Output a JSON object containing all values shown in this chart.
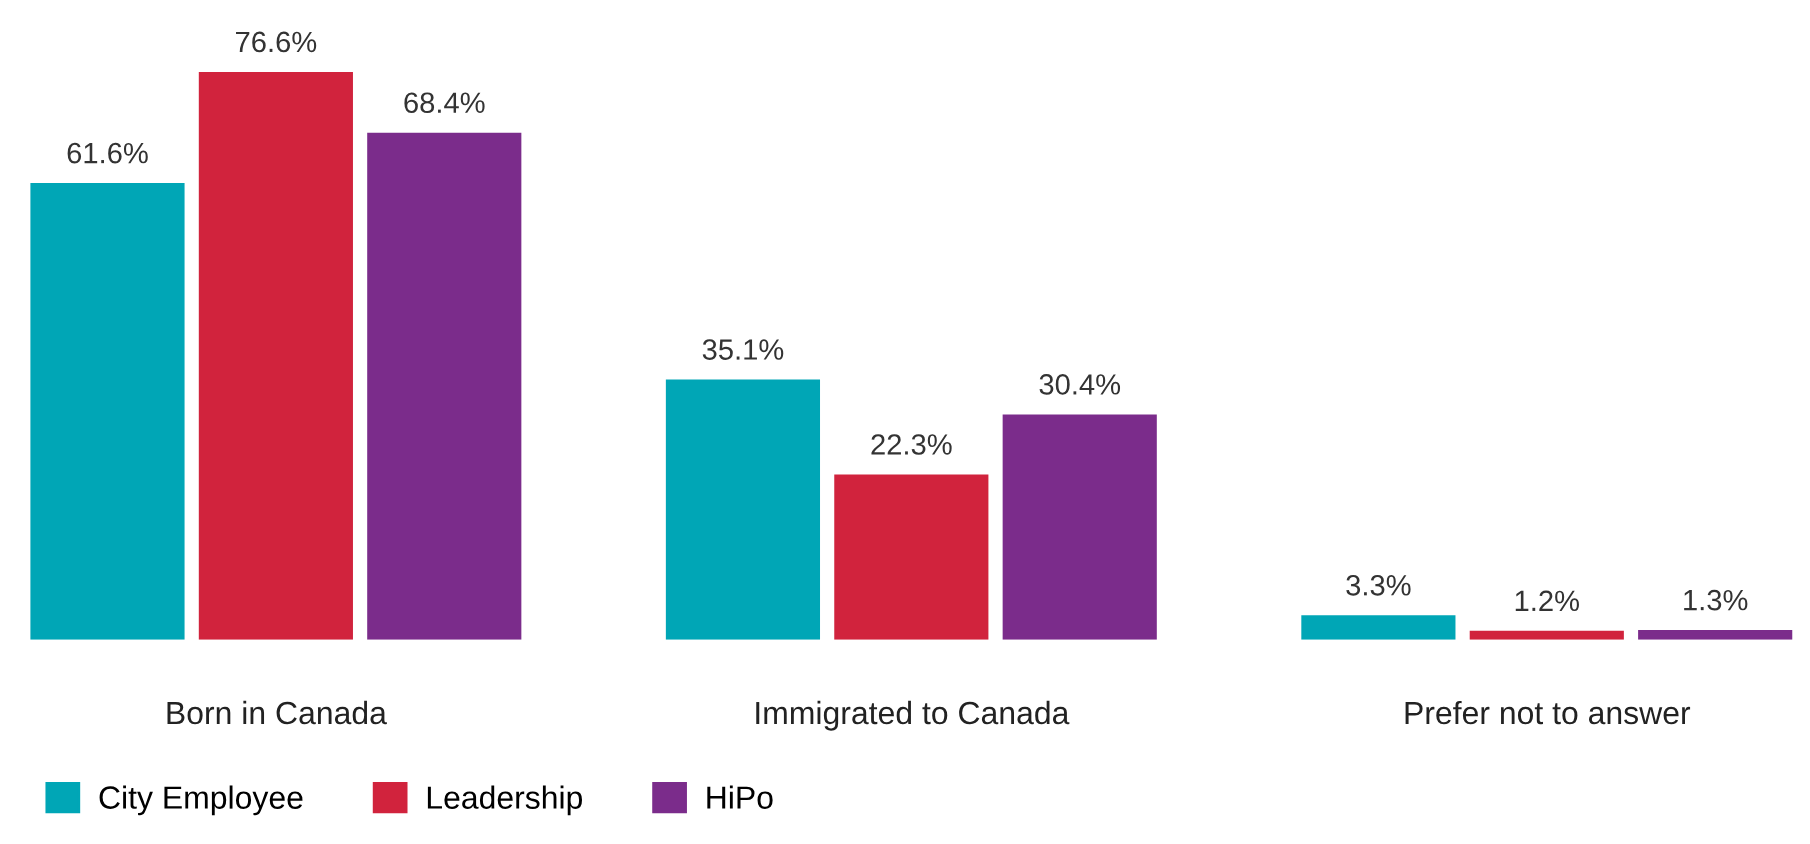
{
  "chart_data": {
    "type": "bar",
    "categories": [
      "Born in Canada",
      "Immigrated to Canada",
      "Prefer not to answer"
    ],
    "series": [
      {
        "name": "City Employee",
        "color": "#00a6b6",
        "values": [
          61.6,
          35.1,
          3.3
        ],
        "value_labels": [
          "61.6%",
          "35.1%",
          "3.3%"
        ]
      },
      {
        "name": "Leadership",
        "color": "#d1233d",
        "values": [
          76.6,
          22.3,
          1.2
        ],
        "value_labels": [
          "76.6%",
          "22.3%",
          "1.2%"
        ]
      },
      {
        "name": "HiPo",
        "color": "#7b2c8b",
        "values": [
          68.4,
          30.4,
          1.3
        ],
        "value_labels": [
          "68.4%",
          "30.4%",
          "1.3%"
        ]
      }
    ],
    "grid": false,
    "legend": "bottom left"
  }
}
